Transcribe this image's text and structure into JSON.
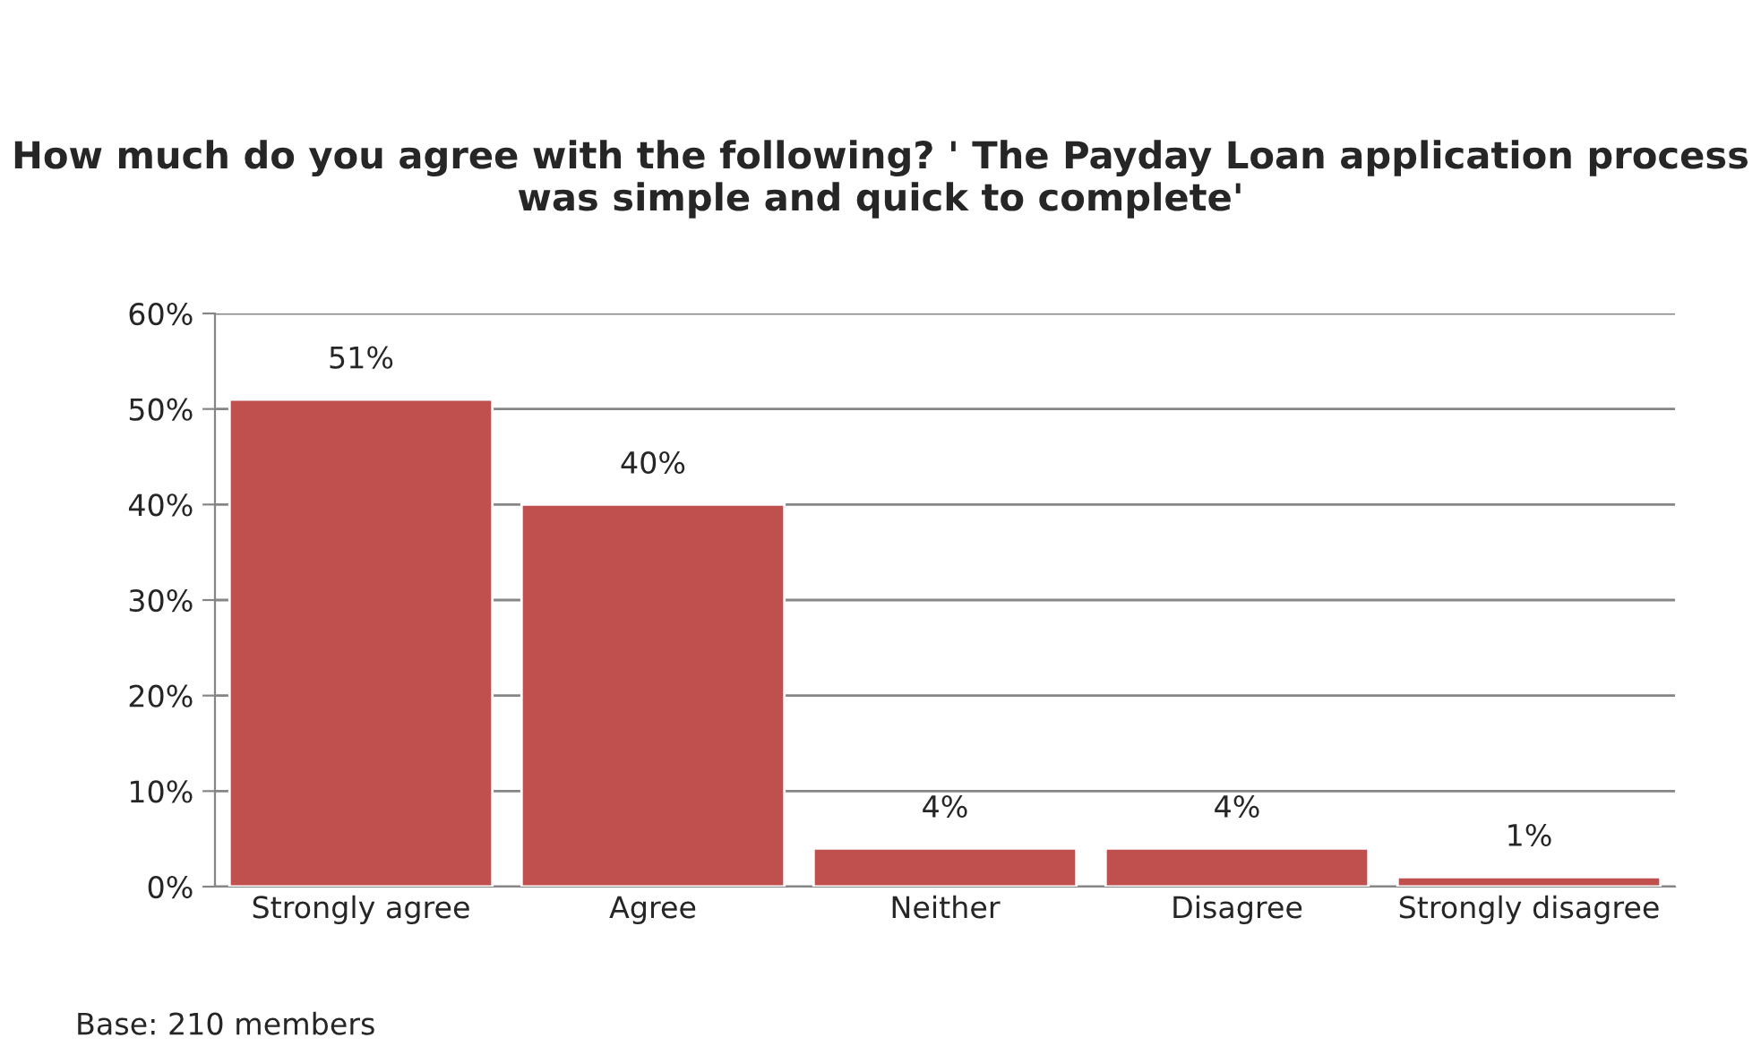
{
  "chart_data": {
    "type": "bar",
    "title": "How much do you agree with the following? ' The Payday Loan application process was simple and quick to complete'",
    "categories": [
      "Strongly agree",
      "Agree",
      "Neither",
      "Disagree",
      "Strongly disagree"
    ],
    "values": [
      51,
      40,
      4,
      4,
      1
    ],
    "color": "#c0504d",
    "value_labels": [
      "51%",
      "40%",
      "4%",
      "4%",
      "1%"
    ],
    "ylim": [
      0,
      60
    ],
    "yticks": [
      {
        "value": 0,
        "label": "0%"
      },
      {
        "value": 10,
        "label": "10%"
      },
      {
        "value": 20,
        "label": "20%"
      },
      {
        "value": 30,
        "label": "30%"
      },
      {
        "value": 40,
        "label": "40%"
      },
      {
        "value": 50,
        "label": "50%"
      },
      {
        "value": 60,
        "label": "60%"
      }
    ],
    "grid": "y",
    "annotations": [
      "Base: 210 members"
    ]
  }
}
